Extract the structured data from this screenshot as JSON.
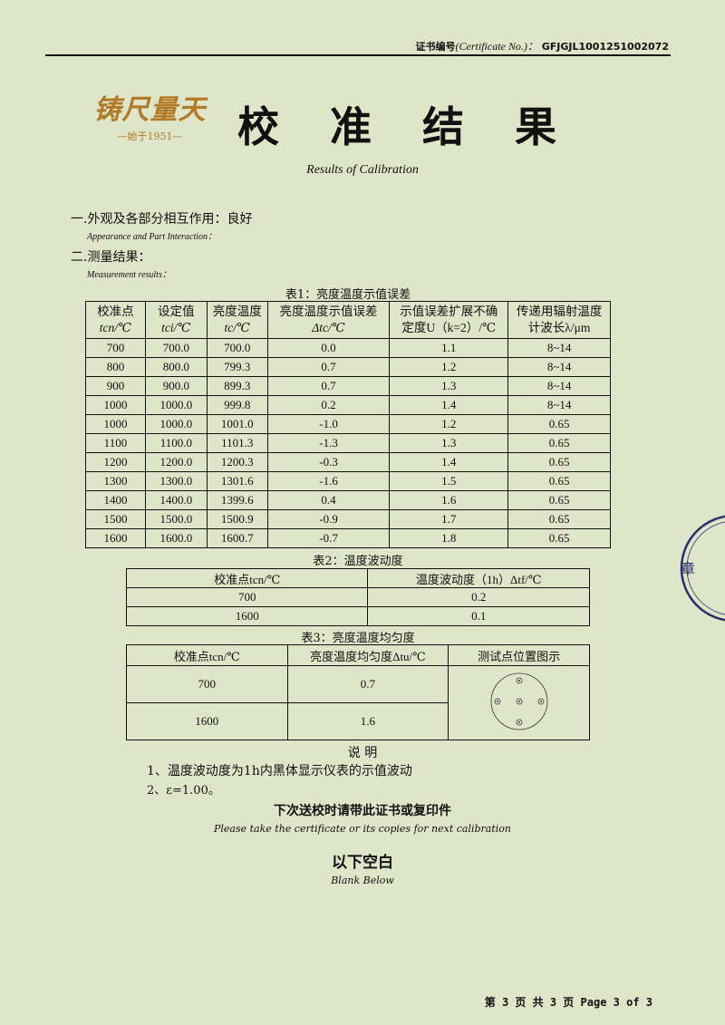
{
  "header": {
    "cert_label_cn": "证书编号",
    "cert_label_en": "(Certificate No.)：",
    "cert_no": "GFJGJL1001251002072"
  },
  "logo": {
    "text": "铸尺量天",
    "since": "—始于1951—",
    "color": "#b07a28"
  },
  "title": "校 准 结 果",
  "subtitle": "Results of Calibration",
  "section1": {
    "cn": "一.外观及各部分相互作用：良好",
    "en": "Appearance and Part Interaction："
  },
  "section2": {
    "cn": "二.测量结果：",
    "en": "Measurement results："
  },
  "table1": {
    "caption": "表1：亮度温度示值误差",
    "headers": [
      [
        "校准点",
        "tcn/℃"
      ],
      [
        "设定值",
        "tci/℃"
      ],
      [
        "亮度温度",
        "tc/℃"
      ],
      [
        "亮度温度示值误差",
        "Δtc/℃"
      ],
      [
        "示值误差扩展不确",
        "定度U（k=2）/℃"
      ],
      [
        "传递用辐射温度",
        "计波长λ/μm"
      ]
    ],
    "rows": [
      [
        "700",
        "700.0",
        "700.0",
        "0.0",
        "1.1",
        "8~14"
      ],
      [
        "800",
        "800.0",
        "799.3",
        "0.7",
        "1.2",
        "8~14"
      ],
      [
        "900",
        "900.0",
        "899.3",
        "0.7",
        "1.3",
        "8~14"
      ],
      [
        "1000",
        "1000.0",
        "999.8",
        "0.2",
        "1.4",
        "8~14"
      ],
      [
        "1000",
        "1000.0",
        "1001.0",
        "-1.0",
        "1.2",
        "0.65"
      ],
      [
        "1100",
        "1100.0",
        "1101.3",
        "-1.3",
        "1.3",
        "0.65"
      ],
      [
        "1200",
        "1200.0",
        "1200.3",
        "-0.3",
        "1.4",
        "0.65"
      ],
      [
        "1300",
        "1300.0",
        "1301.6",
        "-1.6",
        "1.5",
        "0.65"
      ],
      [
        "1400",
        "1400.0",
        "1399.6",
        "0.4",
        "1.6",
        "0.65"
      ],
      [
        "1500",
        "1500.0",
        "1500.9",
        "-0.9",
        "1.7",
        "0.65"
      ],
      [
        "1600",
        "1600.0",
        "1600.7",
        "-0.7",
        "1.8",
        "0.65"
      ]
    ]
  },
  "table2": {
    "caption": "表2：温度波动度",
    "headers": [
      "校准点tcn/℃",
      "温度波动度（1h）Δtf/℃"
    ],
    "rows": [
      [
        "700",
        "0.2"
      ],
      [
        "1600",
        "0.1"
      ]
    ]
  },
  "table3": {
    "caption": "表3：亮度温度均匀度",
    "headers": [
      "校准点tcn/℃",
      "亮度温度均匀度Δtu/℃",
      "测试点位置图示"
    ],
    "rows": [
      [
        "700",
        "0.7"
      ],
      [
        "1600",
        "1.6"
      ]
    ]
  },
  "notes": {
    "title": "说 明",
    "items": [
      "1、温度波动度为1h内黑体显示仪表的示值波动",
      "2、ε=1.00。"
    ]
  },
  "reminder": {
    "cn": "下次送校时请带此证书或复印件",
    "en": "Please take the certificate or its copies for next calibration"
  },
  "blank": {
    "cn": "以下空白",
    "en": "Blank Below"
  },
  "footer": "第 3 页 共 3 页  Page 3 of 3",
  "stamp": {
    "text": "集团公司 章",
    "color": "#2a2f6a"
  }
}
